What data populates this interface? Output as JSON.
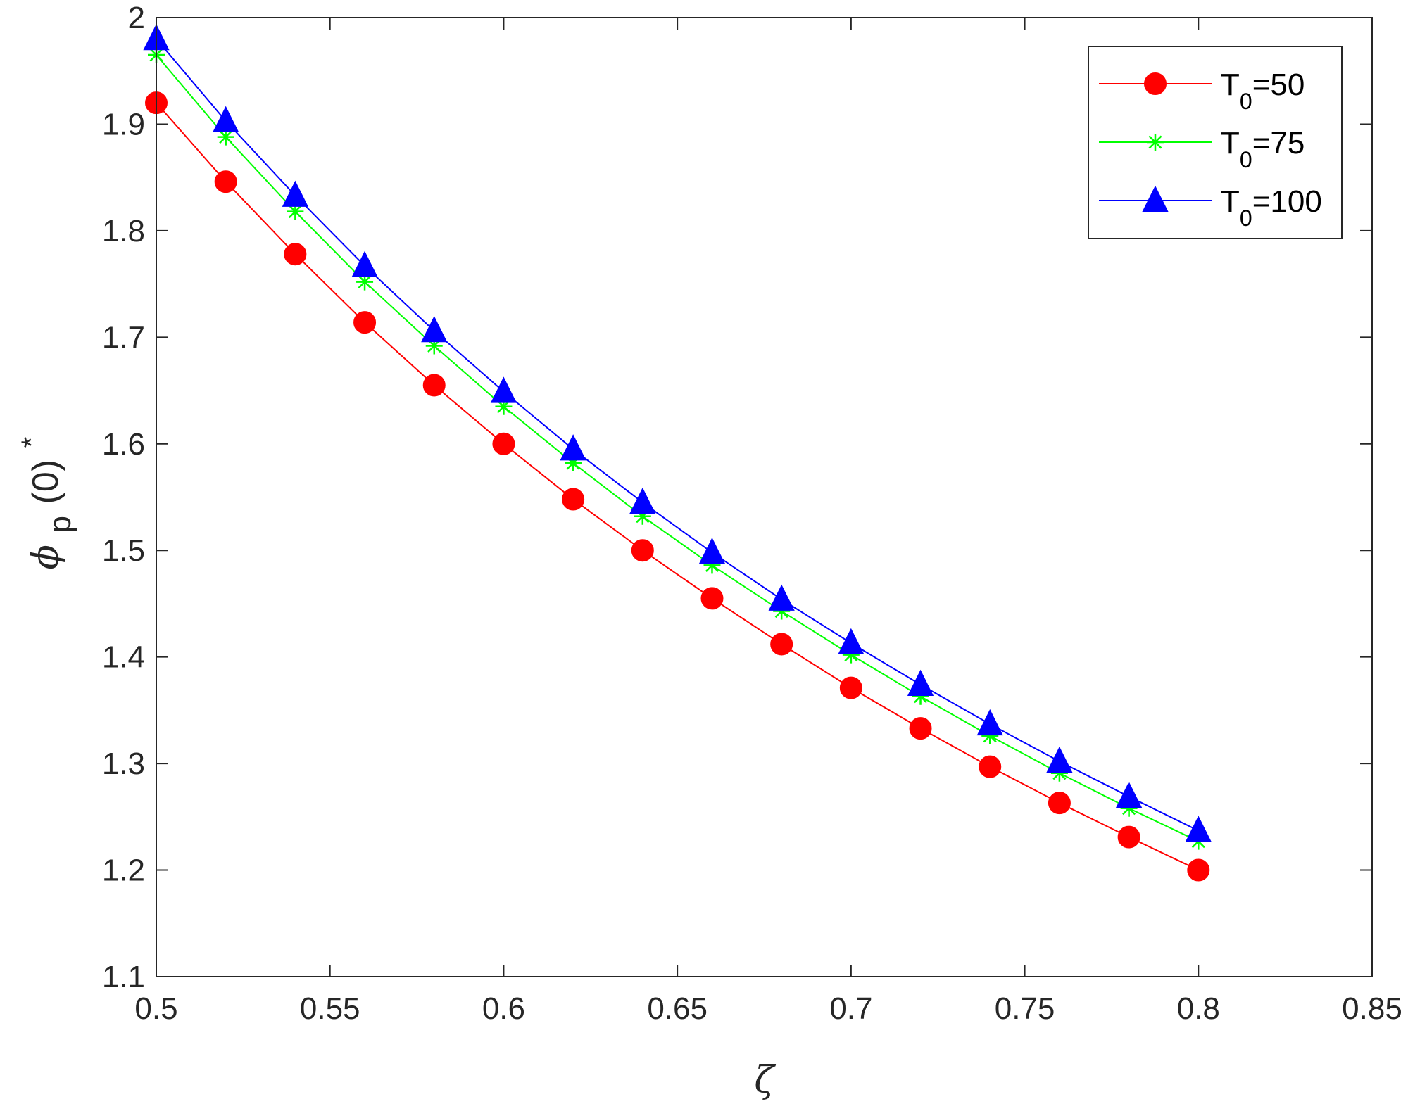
{
  "chart_data": {
    "type": "line",
    "xlabel": "ζ",
    "ylabel": {
      "base": "ϕ",
      "sub": "p",
      "paren": "(0)",
      "sup": "*"
    },
    "xlim": [
      0.5,
      0.85
    ],
    "ylim": [
      1.1,
      2.0
    ],
    "xticks": [
      "0.5",
      "0.55",
      "0.6",
      "0.65",
      "0.7",
      "0.75",
      "0.8",
      "0.85"
    ],
    "yticks": [
      "1.1",
      "1.2",
      "1.3",
      "1.4",
      "1.5",
      "1.6",
      "1.7",
      "1.8",
      "1.9",
      "2"
    ],
    "grid": false,
    "legend_position": "top-right",
    "x": [
      0.5,
      0.52,
      0.54,
      0.56,
      0.58,
      0.6,
      0.62,
      0.64,
      0.66,
      0.68,
      0.7,
      0.72,
      0.74,
      0.76,
      0.78,
      0.8
    ],
    "series": [
      {
        "label_base": "T",
        "label_sub": "0",
        "label_rest": "=50",
        "color": "#ff0000",
        "marker": "circle",
        "values": [
          1.92,
          1.846,
          1.778,
          1.714,
          1.655,
          1.6,
          1.548,
          1.5,
          1.455,
          1.412,
          1.371,
          1.333,
          1.297,
          1.263,
          1.231,
          1.2
        ]
      },
      {
        "label_base": "T",
        "label_sub": "0",
        "label_rest": "=75",
        "color": "#00ff00",
        "marker": "asterisk",
        "values": [
          1.965,
          1.888,
          1.818,
          1.752,
          1.692,
          1.635,
          1.582,
          1.532,
          1.486,
          1.443,
          1.402,
          1.363,
          1.326,
          1.291,
          1.258,
          1.227
        ]
      },
      {
        "label_base": "T",
        "label_sub": "0",
        "label_rest": "=100",
        "color": "#0000ff",
        "marker": "triangle",
        "values": [
          1.98,
          1.903,
          1.833,
          1.767,
          1.706,
          1.649,
          1.595,
          1.545,
          1.498,
          1.454,
          1.413,
          1.374,
          1.337,
          1.302,
          1.269,
          1.237
        ]
      }
    ]
  }
}
